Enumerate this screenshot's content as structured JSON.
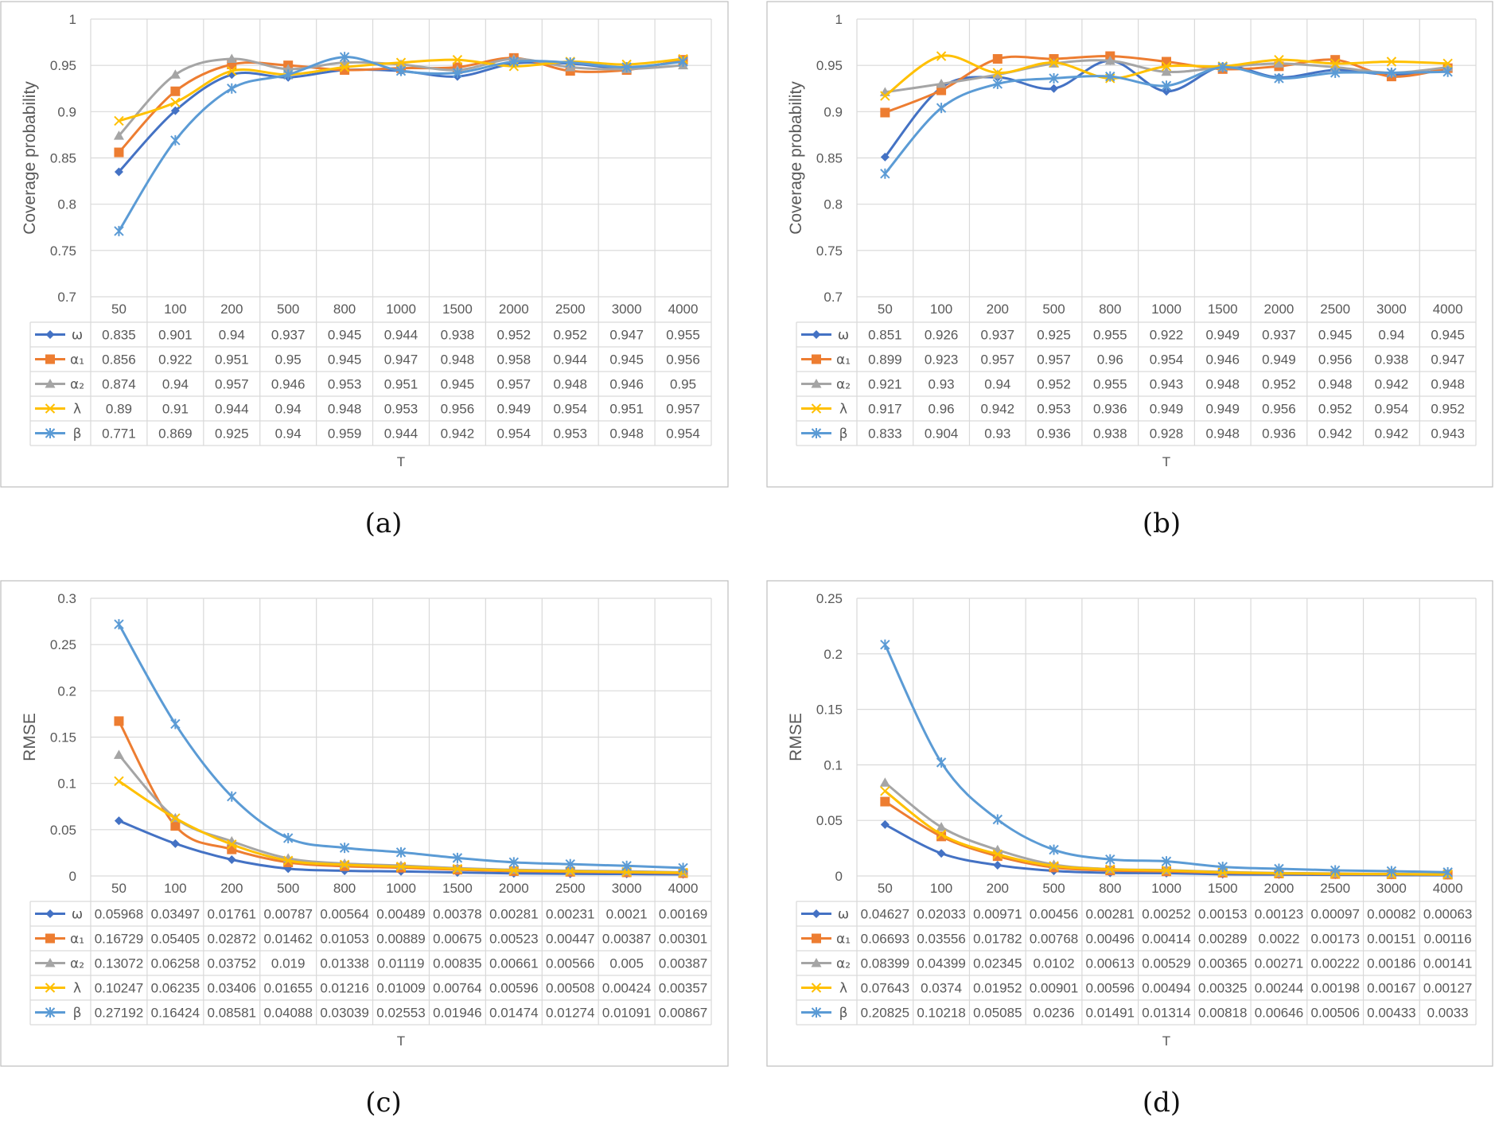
{
  "colors": {
    "omega": "#4472C4",
    "alpha1": "#ED7D31",
    "alpha2": "#A5A5A5",
    "lambda": "#FFC000",
    "beta": "#5B9BD5",
    "grid": "#D9D9D9",
    "frame": "#BFBFBF",
    "text": "#595959"
  },
  "series_markers": {
    "ω": "diamond",
    "α₁": "square",
    "α₂": "triangle",
    "λ": "x",
    "β": "star"
  },
  "panels": [
    {
      "caption": "(a)",
      "chart_data": {
        "type": "line",
        "smooth": true,
        "ylabel": "Coverage probability",
        "xlabel": "T",
        "ylim": [
          0.7,
          1
        ],
        "ytick_step": 0.05,
        "yticks": [
          "0.7",
          "0.75",
          "0.8",
          "0.85",
          "0.9",
          "0.95",
          "1"
        ],
        "grid": true,
        "legend": "data-table",
        "categories": [
          "50",
          "100",
          "200",
          "500",
          "800",
          "1000",
          "1500",
          "2000",
          "2500",
          "3000",
          "4000"
        ],
        "series": [
          {
            "name": "ω",
            "values": [
              0.835,
              0.901,
              0.94,
              0.937,
              0.945,
              0.944,
              0.938,
              0.952,
              0.952,
              0.947,
              0.955
            ],
            "labels": [
              "0.835",
              "0.901",
              "0.94",
              "0.937",
              "0.945",
              "0.944",
              "0.938",
              "0.952",
              "0.952",
              "0.947",
              "0.955"
            ]
          },
          {
            "name": "α₁",
            "values": [
              0.856,
              0.922,
              0.951,
              0.95,
              0.945,
              0.947,
              0.948,
              0.958,
              0.944,
              0.945,
              0.956
            ],
            "labels": [
              "0.856",
              "0.922",
              "0.951",
              "0.95",
              "0.945",
              "0.947",
              "0.948",
              "0.958",
              "0.944",
              "0.945",
              "0.956"
            ]
          },
          {
            "name": "α₂",
            "values": [
              0.874,
              0.94,
              0.957,
              0.946,
              0.953,
              0.951,
              0.945,
              0.957,
              0.948,
              0.946,
              0.95
            ],
            "labels": [
              "0.874",
              "0.94",
              "0.957",
              "0.946",
              "0.953",
              "0.951",
              "0.945",
              "0.957",
              "0.948",
              "0.946",
              "0.95"
            ]
          },
          {
            "name": "λ",
            "values": [
              0.89,
              0.91,
              0.944,
              0.94,
              0.948,
              0.953,
              0.956,
              0.949,
              0.954,
              0.951,
              0.957
            ],
            "labels": [
              "0.89",
              "0.91",
              "0.944",
              "0.94",
              "0.948",
              "0.953",
              "0.956",
              "0.949",
              "0.954",
              "0.951",
              "0.957"
            ]
          },
          {
            "name": "β",
            "values": [
              0.771,
              0.869,
              0.925,
              0.94,
              0.959,
              0.944,
              0.942,
              0.954,
              0.953,
              0.948,
              0.954
            ],
            "labels": [
              "0.771",
              "0.869",
              "0.925",
              "0.94",
              "0.959",
              "0.944",
              "0.942",
              "0.954",
              "0.953",
              "0.948",
              "0.954"
            ]
          }
        ]
      }
    },
    {
      "caption": "(b)",
      "chart_data": {
        "type": "line",
        "smooth": true,
        "ylabel": "Coverage probability",
        "xlabel": "T",
        "ylim": [
          0.7,
          1
        ],
        "ytick_step": 0.05,
        "yticks": [
          "0.7",
          "0.75",
          "0.8",
          "0.85",
          "0.9",
          "0.95",
          "1"
        ],
        "grid": true,
        "legend": "data-table",
        "categories": [
          "50",
          "100",
          "200",
          "500",
          "800",
          "1000",
          "1500",
          "2000",
          "2500",
          "3000",
          "4000"
        ],
        "series": [
          {
            "name": "ω",
            "values": [
              0.851,
              0.926,
              0.937,
              0.925,
              0.955,
              0.922,
              0.949,
              0.937,
              0.945,
              0.94,
              0.945
            ],
            "labels": [
              "0.851",
              "0.926",
              "0.937",
              "0.925",
              "0.955",
              "0.922",
              "0.949",
              "0.937",
              "0.945",
              "0.94",
              "0.945"
            ]
          },
          {
            "name": "α₁",
            "values": [
              0.899,
              0.923,
              0.957,
              0.957,
              0.96,
              0.954,
              0.946,
              0.949,
              0.956,
              0.938,
              0.947
            ],
            "labels": [
              "0.899",
              "0.923",
              "0.957",
              "0.957",
              "0.96",
              "0.954",
              "0.946",
              "0.949",
              "0.956",
              "0.938",
              "0.947"
            ]
          },
          {
            "name": "α₂",
            "values": [
              0.921,
              0.93,
              0.94,
              0.952,
              0.955,
              0.943,
              0.948,
              0.952,
              0.948,
              0.942,
              0.948
            ],
            "labels": [
              "0.921",
              "0.93",
              "0.94",
              "0.952",
              "0.955",
              "0.943",
              "0.948",
              "0.952",
              "0.948",
              "0.942",
              "0.948"
            ]
          },
          {
            "name": "λ",
            "values": [
              0.917,
              0.96,
              0.942,
              0.953,
              0.936,
              0.949,
              0.949,
              0.956,
              0.952,
              0.954,
              0.952
            ],
            "labels": [
              "0.917",
              "0.96",
              "0.942",
              "0.953",
              "0.936",
              "0.949",
              "0.949",
              "0.956",
              "0.952",
              "0.954",
              "0.952"
            ]
          },
          {
            "name": "β",
            "values": [
              0.833,
              0.904,
              0.93,
              0.936,
              0.938,
              0.928,
              0.948,
              0.936,
              0.942,
              0.942,
              0.943
            ],
            "labels": [
              "0.833",
              "0.904",
              "0.93",
              "0.936",
              "0.938",
              "0.928",
              "0.948",
              "0.936",
              "0.942",
              "0.942",
              "0.943"
            ]
          }
        ]
      }
    },
    {
      "caption": "(c)",
      "chart_data": {
        "type": "line",
        "smooth": true,
        "ylabel": "RMSE",
        "xlabel": "T",
        "ylim": [
          0,
          0.3
        ],
        "ytick_step": 0.05,
        "yticks": [
          "0",
          "0.05",
          "0.1",
          "0.15",
          "0.2",
          "0.25",
          "0.3"
        ],
        "grid": true,
        "legend": "data-table",
        "categories": [
          "50",
          "100",
          "200",
          "500",
          "800",
          "1000",
          "1500",
          "2000",
          "2500",
          "3000",
          "4000"
        ],
        "series": [
          {
            "name": "ω",
            "values": [
              0.05968,
              0.03497,
              0.01761,
              0.00787,
              0.00564,
              0.00489,
              0.00378,
              0.00281,
              0.00231,
              0.0021,
              0.00169
            ],
            "labels": [
              "0.05968",
              "0.03497",
              "0.01761",
              "0.00787",
              "0.00564",
              "0.00489",
              "0.00378",
              "0.00281",
              "0.00231",
              "0.0021",
              "0.00169"
            ]
          },
          {
            "name": "α₁",
            "values": [
              0.16729,
              0.05405,
              0.02872,
              0.01462,
              0.01053,
              0.00889,
              0.00675,
              0.00523,
              0.00447,
              0.00387,
              0.00301
            ],
            "labels": [
              "0.16729",
              "0.05405",
              "0.02872",
              "0.01462",
              "0.01053",
              "0.00889",
              "0.00675",
              "0.00523",
              "0.00447",
              "0.00387",
              "0.00301"
            ]
          },
          {
            "name": "α₂",
            "values": [
              0.13072,
              0.06258,
              0.03752,
              0.019,
              0.01338,
              0.01119,
              0.00835,
              0.00661,
              0.00566,
              0.005,
              0.00387
            ],
            "labels": [
              "0.13072",
              "0.06258",
              "0.03752",
              "0.019",
              "0.01338",
              "0.01119",
              "0.00835",
              "0.00661",
              "0.00566",
              "0.005",
              "0.00387"
            ]
          },
          {
            "name": "λ",
            "values": [
              0.10247,
              0.06235,
              0.03406,
              0.01655,
              0.01216,
              0.01009,
              0.00764,
              0.00596,
              0.00508,
              0.00424,
              0.00357
            ],
            "labels": [
              "0.10247",
              "0.06235",
              "0.03406",
              "0.01655",
              "0.01216",
              "0.01009",
              "0.00764",
              "0.00596",
              "0.00508",
              "0.00424",
              "0.00357"
            ]
          },
          {
            "name": "β",
            "values": [
              0.27192,
              0.16424,
              0.08581,
              0.04088,
              0.03039,
              0.02553,
              0.01946,
              0.01474,
              0.01274,
              0.01091,
              0.00867
            ],
            "labels": [
              "0.27192",
              "0.16424",
              "0.08581",
              "0.04088",
              "0.03039",
              "0.02553",
              "0.01946",
              "0.01474",
              "0.01274",
              "0.01091",
              "0.00867"
            ]
          }
        ]
      }
    },
    {
      "caption": "(d)",
      "chart_data": {
        "type": "line",
        "smooth": true,
        "ylabel": "RMSE",
        "xlabel": "T",
        "ylim": [
          0,
          0.25
        ],
        "ytick_step": 0.05,
        "yticks": [
          "0",
          "0.05",
          "0.1",
          "0.15",
          "0.2",
          "0.25"
        ],
        "grid": true,
        "legend": "data-table",
        "categories": [
          "50",
          "100",
          "200",
          "500",
          "800",
          "1000",
          "1500",
          "2000",
          "2500",
          "3000",
          "4000"
        ],
        "series": [
          {
            "name": "ω",
            "values": [
              0.04627,
              0.02033,
              0.00971,
              0.00456,
              0.00281,
              0.00252,
              0.00153,
              0.00123,
              0.00097,
              0.00082,
              0.00063
            ],
            "labels": [
              "0.04627",
              "0.02033",
              "0.00971",
              "0.00456",
              "0.00281",
              "0.00252",
              "0.00153",
              "0.00123",
              "0.00097",
              "0.00082",
              "0.00063"
            ]
          },
          {
            "name": "α₁",
            "values": [
              0.06693,
              0.03556,
              0.01782,
              0.00768,
              0.00496,
              0.00414,
              0.00289,
              0.0022,
              0.00173,
              0.00151,
              0.00116
            ],
            "labels": [
              "0.06693",
              "0.03556",
              "0.01782",
              "0.00768",
              "0.00496",
              "0.00414",
              "0.00289",
              "0.0022",
              "0.00173",
              "0.00151",
              "0.00116"
            ]
          },
          {
            "name": "α₂",
            "values": [
              0.08399,
              0.04399,
              0.02345,
              0.0102,
              0.00613,
              0.00529,
              0.00365,
              0.00271,
              0.00222,
              0.00186,
              0.00141
            ],
            "labels": [
              "0.08399",
              "0.04399",
              "0.02345",
              "0.0102",
              "0.00613",
              "0.00529",
              "0.00365",
              "0.00271",
              "0.00222",
              "0.00186",
              "0.00141"
            ]
          },
          {
            "name": "λ",
            "values": [
              0.07643,
              0.0374,
              0.01952,
              0.00901,
              0.00596,
              0.00494,
              0.00325,
              0.00244,
              0.00198,
              0.00167,
              0.00127
            ],
            "labels": [
              "0.07643",
              "0.0374",
              "0.01952",
              "0.00901",
              "0.00596",
              "0.00494",
              "0.00325",
              "0.00244",
              "0.00198",
              "0.00167",
              "0.00127"
            ]
          },
          {
            "name": "β",
            "values": [
              0.20825,
              0.10218,
              0.05085,
              0.0236,
              0.01491,
              0.01314,
              0.00818,
              0.00646,
              0.00506,
              0.00433,
              0.0033
            ],
            "labels": [
              "0.20825",
              "0.10218",
              "0.05085",
              "0.0236",
              "0.01491",
              "0.01314",
              "0.00818",
              "0.00646",
              "0.00506",
              "0.00433",
              "0.0033"
            ]
          }
        ]
      }
    }
  ]
}
